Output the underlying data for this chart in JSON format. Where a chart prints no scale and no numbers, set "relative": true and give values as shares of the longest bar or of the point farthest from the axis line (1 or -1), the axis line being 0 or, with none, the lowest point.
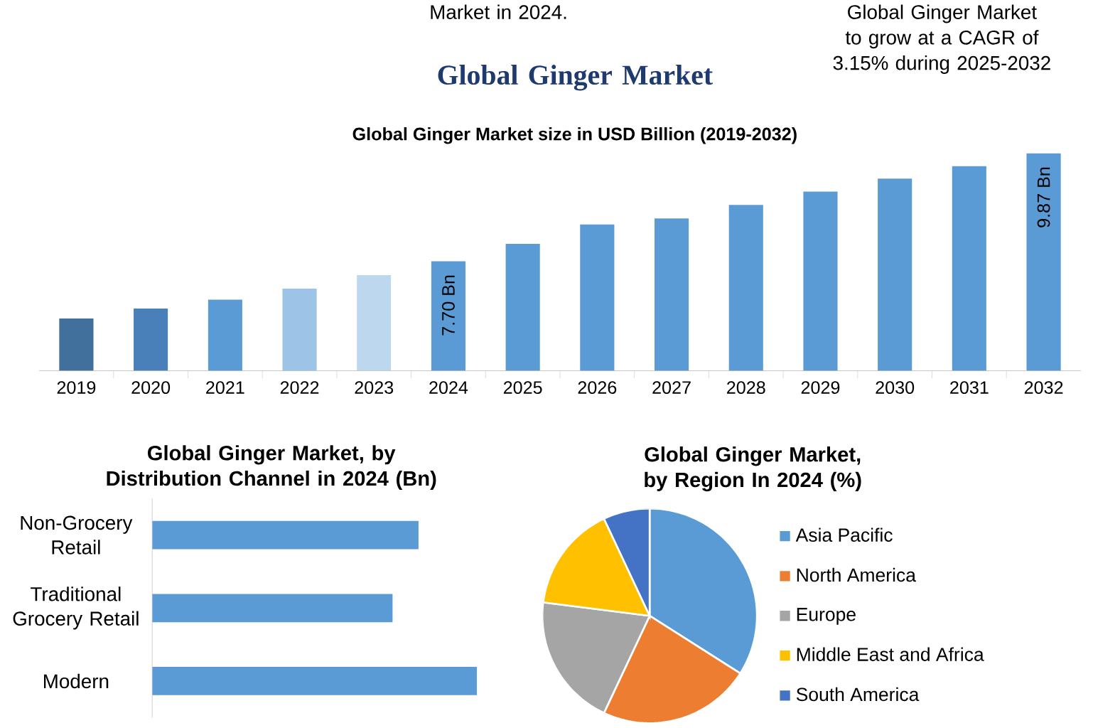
{
  "chart_data": [
    {
      "type": "bar",
      "title": "Global Ginger Market",
      "subtitle": "Global Ginger Market size in USD Billion (2019-2032)",
      "annotations": [
        "Market in 2024.",
        "Global Ginger Market to grow at a CAGR of 3.15% during 2025-2032"
      ],
      "categories": [
        "2019",
        "2020",
        "2021",
        "2022",
        "2023",
        "2024",
        "2025",
        "2026",
        "2027",
        "2028",
        "2029",
        "2030",
        "2031",
        "2032"
      ],
      "values": [
        6.55,
        6.75,
        6.93,
        7.15,
        7.42,
        7.7,
        8.05,
        8.44,
        8.56,
        8.83,
        9.1,
        9.36,
        9.61,
        9.87
      ],
      "colors": [
        "#41709c",
        "#4a80ba",
        "#5b9bd5",
        "#9dc3e6",
        "#bdd7ee",
        "#5b9bd5",
        "#5b9bd5",
        "#5b9bd5",
        "#5b9bd5",
        "#5b9bd5",
        "#5b9bd5",
        "#5b9bd5",
        "#5b9bd5",
        "#5b9bd5"
      ],
      "value_labels": [
        null,
        null,
        null,
        null,
        null,
        "7.70 Bn",
        null,
        null,
        null,
        null,
        null,
        null,
        null,
        "9.87 Bn"
      ],
      "ylim": [
        5.5,
        9.87
      ],
      "tick_labels": "x"
    },
    {
      "type": "bar",
      "orientation": "horizontal",
      "relative": true,
      "title": "Global Ginger Market, by Distribution Channel in 2024 (Bn)",
      "categories": [
        "Non-Grocery Retail",
        "Traditional Grocery Retail",
        "Modern"
      ],
      "values": [
        0.82,
        0.74,
        1
      ],
      "color": "#5b9bd5"
    },
    {
      "type": "pie",
      "title": "Global Ginger Market, by Region In 2024 (%)",
      "categories": [
        "Asia Pacific",
        "North America",
        "Europe",
        "Middle East and Africa",
        "South America"
      ],
      "values": [
        34,
        23,
        20,
        16,
        7
      ],
      "colors": [
        "#5b9bd5",
        "#ed7d31",
        "#a5a5a5",
        "#ffc000",
        "#4472c4"
      ],
      "legend": "right"
    }
  ]
}
